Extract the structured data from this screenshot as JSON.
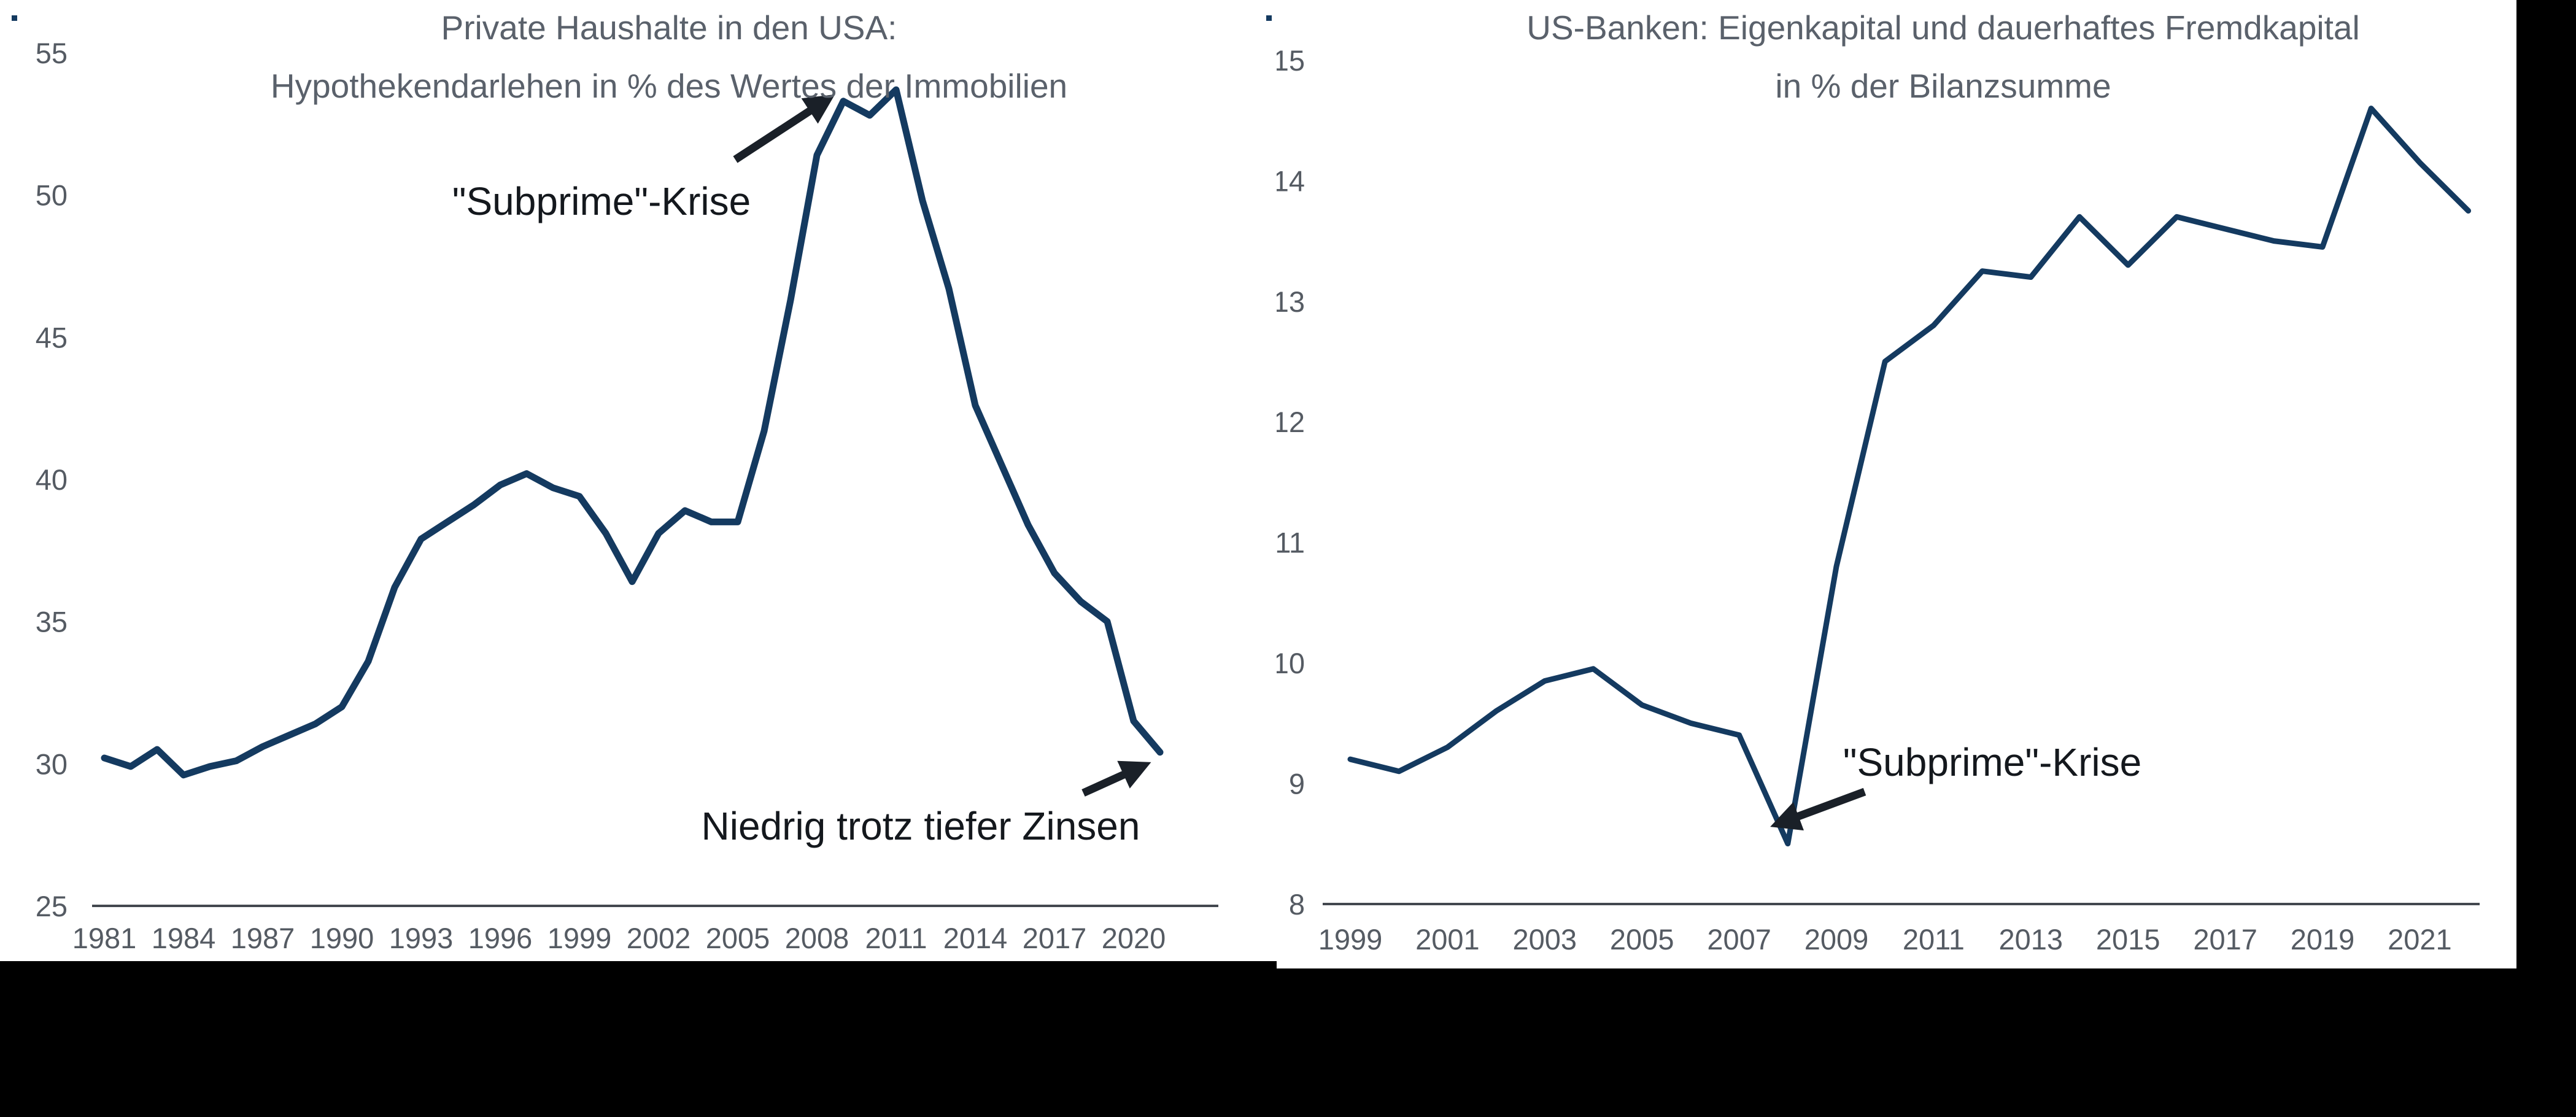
{
  "page": {
    "background_color": "#000000",
    "panel_background_color": "#ffffff",
    "bullet_marker_color": "#143A60"
  },
  "colors": {
    "series_line": "#143A60",
    "axis_line": "#43484F",
    "tick_text": "#555B63",
    "title_text": "#5A616B",
    "annotation_text": "#14181D",
    "arrow": "#1A2028"
  },
  "chart_data": [
    {
      "type": "line",
      "title_line1": "Private Haushalte in den USA:",
      "title_line2": "Hypothekendarlehen in % des Wertes der Immobilien",
      "xlabel": "",
      "ylabel": "",
      "ylim": [
        25,
        55
      ],
      "grid": false,
      "legend": "none",
      "y_tick_labels": [
        55,
        50,
        45,
        40,
        35,
        30,
        25
      ],
      "x_tick_labels": [
        1981,
        1984,
        1987,
        1990,
        1993,
        1996,
        1999,
        2002,
        2005,
        2008,
        2011,
        2014,
        2017,
        2020
      ],
      "x": [
        1981,
        1982,
        1983,
        1984,
        1985,
        1986,
        1987,
        1988,
        1989,
        1990,
        1991,
        1992,
        1993,
        1994,
        1995,
        1996,
        1997,
        1998,
        1999,
        2000,
        2001,
        2002,
        2003,
        2004,
        2005,
        2006,
        2007,
        2008,
        2009,
        2010,
        2011,
        2012,
        2013,
        2014,
        2015,
        2016,
        2017,
        2018,
        2019,
        2020,
        2021
      ],
      "values": [
        30.2,
        29.9,
        30.5,
        29.6,
        29.9,
        30.1,
        30.6,
        31.0,
        31.4,
        32.0,
        33.6,
        36.2,
        37.9,
        38.5,
        39.1,
        39.8,
        40.2,
        39.7,
        39.4,
        38.1,
        36.4,
        38.1,
        38.9,
        38.5,
        38.5,
        41.7,
        46.3,
        51.4,
        53.3,
        52.8,
        53.7,
        49.8,
        46.7,
        42.6,
        40.5,
        38.4,
        36.7,
        35.7,
        35.0,
        31.5,
        30.4
      ],
      "annotations": [
        {
          "id": "subprime-crisis",
          "text": "\"Subprime\"-Krise"
        },
        {
          "id": "low-despite-rates",
          "text": "Niedrig trotz tiefer Zinsen"
        }
      ]
    },
    {
      "type": "line",
      "title_line1": "US-Banken: Eigenkapital und dauerhaftes Fremdkapital",
      "title_line2": "in % der Bilanzsumme",
      "xlabel": "",
      "ylabel": "",
      "ylim": [
        8,
        15
      ],
      "grid": false,
      "legend": "none",
      "y_tick_labels": [
        15,
        14,
        13,
        12,
        11,
        10,
        9,
        8
      ],
      "x_tick_labels": [
        1999,
        2001,
        2003,
        2005,
        2007,
        2009,
        2011,
        2013,
        2015,
        2017,
        2019,
        2021
      ],
      "x": [
        1999,
        2000,
        2001,
        2002,
        2003,
        2004,
        2005,
        2006,
        2007,
        2008,
        2009,
        2010,
        2011,
        2012,
        2013,
        2014,
        2015,
        2016,
        2017,
        2018,
        2019,
        2020,
        2021,
        2022
      ],
      "values": [
        9.2,
        9.1,
        9.3,
        9.6,
        9.85,
        9.95,
        9.65,
        9.5,
        9.4,
        8.5,
        10.8,
        12.5,
        12.8,
        13.25,
        13.2,
        13.7,
        13.3,
        13.7,
        13.6,
        13.5,
        13.45,
        14.6,
        14.15,
        13.75
      ],
      "annotations": [
        {
          "id": "subprime-crisis",
          "text": "\"Subprime\"-Krise"
        }
      ]
    }
  ]
}
